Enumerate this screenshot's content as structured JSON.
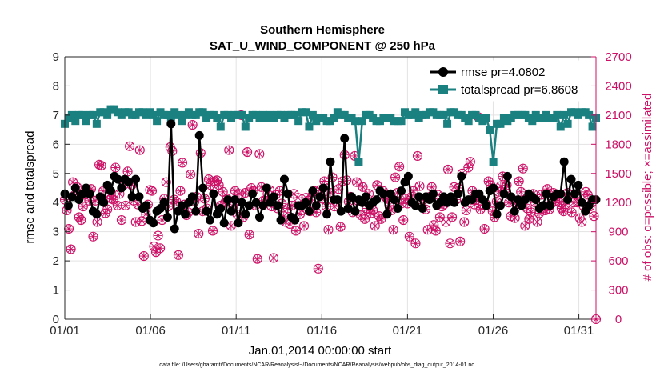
{
  "colors": {
    "rmse": "#000000",
    "spread": "#1a8080",
    "obs": "#cc1166",
    "grid": "#e3e3e3"
  },
  "chart_data": {
    "type": "line",
    "title": "Southern Hemisphere",
    "subtitle": "SAT_U_WIND_COMPONENT @ 250 hPa",
    "xlabel": "Jan.01,2014 00:00:00 start",
    "ylabel_left": "rmse and totalspread",
    "ylabel_right": "# of obs: o=possible; ×=assimilated",
    "footer": "data file: /Users/gharamti/Documents/NCAR/Reanalysis/~/Documents/NCAR/Reanalysis/webpub/obs_diag_output_2014-01.nc",
    "xlim": [
      1,
      32
    ],
    "ylim_left": [
      0,
      9
    ],
    "ylim_right": [
      0,
      2700
    ],
    "x_ticks": [
      1,
      6,
      11,
      16,
      21,
      26,
      31
    ],
    "x_tick_labels": [
      "01/01",
      "01/06",
      "01/11",
      "01/16",
      "01/21",
      "01/26",
      "01/31"
    ],
    "y_left_ticks": [
      "0",
      "1",
      "2",
      "3",
      "4",
      "5",
      "6",
      "7",
      "8",
      "9"
    ],
    "y_right_ticks": [
      "0",
      "300",
      "600",
      "900",
      "1200",
      "1500",
      "1800",
      "2100",
      "2400",
      "2700"
    ],
    "grid": true,
    "legend_position": "top-right",
    "series": [
      {
        "name": "rmse",
        "label": "rmse pr=4.0802",
        "axis": "left",
        "values": [
          4.3,
          3.9,
          4.2,
          4.5,
          4.1,
          4.3,
          4.5,
          4.3,
          3.7,
          3.6,
          4.2,
          4.0,
          4.6,
          4.4,
          4.9,
          4.8,
          4.5,
          4.8,
          4.7,
          4.2,
          4.8,
          4.2,
          3.8,
          3.9,
          3.4,
          3.3,
          3.7,
          3.8,
          4.0,
          3.5,
          6.7,
          3.1,
          3.7,
          3.9,
          3.6,
          4.0,
          4.2,
          3.7,
          6.3,
          4.5,
          3.7,
          3.4,
          4.3,
          3.6,
          3.8,
          3.3,
          4.1,
          3.7,
          4.1,
          3.3,
          4.0,
          3.6,
          3.9,
          4.3,
          4.0,
          3.5,
          3.9,
          4.5,
          4.0,
          4.2,
          3.9,
          3.4,
          4.8,
          4.3,
          3.5,
          3.4,
          3.9,
          3.9,
          4.0,
          3.7,
          4.4,
          3.9,
          4.2,
          4.5,
          3.6,
          5.4,
          4.1,
          4.1,
          3.7,
          6.2,
          3.8,
          4.2,
          3.7,
          4.1,
          4.0,
          4.2,
          3.9,
          4.0,
          4.1,
          4.4,
          4.3,
          3.6,
          4.3,
          4.1,
          3.8,
          4.4,
          4.7,
          4.9,
          4.0,
          3.9,
          4.2,
          3.8,
          4.2,
          4.1,
          4.3,
          3.9,
          4.0,
          4.2,
          4.0,
          4.2,
          4.0,
          4.3,
          4.9,
          4.0,
          4.1,
          4.1,
          4.3,
          4.3,
          4.1,
          3.9,
          4.4,
          4.5,
          3.6,
          3.9,
          4.3,
          4.9,
          4.2,
          3.7,
          4.1,
          3.9,
          4.1,
          4.3,
          4.2,
          4.1,
          3.8,
          3.9,
          4.3,
          3.9,
          4.2,
          4.3,
          4.3,
          5.4,
          4.1,
          4.8,
          4.3,
          4.6,
          4.0,
          3.7,
          3.9,
          4.1,
          4.1
        ]
      },
      {
        "name": "totalspread",
        "label": "totalspread pr=6.8608",
        "axis": "left",
        "values": [
          6.7,
          6.9,
          7.0,
          6.8,
          7.0,
          7.0,
          6.8,
          7.0,
          7.0,
          6.7,
          7.1,
          7.1,
          7.0,
          7.2,
          7.2,
          7.1,
          7.0,
          7.1,
          7.1,
          7.0,
          7.0,
          7.1,
          7.1,
          7.0,
          7.1,
          7.0,
          6.8,
          7.1,
          7.0,
          7.0,
          6.9,
          7.1,
          7.0,
          6.8,
          7.0,
          7.1,
          7.0,
          7.0,
          7.1,
          7.1,
          6.9,
          7.0,
          7.0,
          6.9,
          6.6,
          7.0,
          7.0,
          6.9,
          7.0,
          7.0,
          7.0,
          6.6,
          6.9,
          7.0,
          7.0,
          6.9,
          7.0,
          6.9,
          7.0,
          6.9,
          7.0,
          7.0,
          6.9,
          7.0,
          7.0,
          7.0,
          6.8,
          7.1,
          7.1,
          6.6,
          7.0,
          6.8,
          6.9,
          6.9,
          6.8,
          6.8,
          6.9,
          7.1,
          7.0,
          7.0,
          6.9,
          6.9,
          6.8,
          5.4,
          6.8,
          7.0,
          7.0,
          6.9,
          6.8,
          6.8,
          6.9,
          6.9,
          6.9,
          6.8,
          6.8,
          6.8,
          7.1,
          7.0,
          7.0,
          7.1,
          6.9,
          7.0,
          7.0,
          7.1,
          7.1,
          7.0,
          7.0,
          7.0,
          6.7,
          7.1,
          7.1,
          7.0,
          7.0,
          6.9,
          6.8,
          7.0,
          7.0,
          6.9,
          6.8,
          6.9,
          6.5,
          5.4,
          6.7,
          6.7,
          6.9,
          6.8,
          6.9,
          7.0,
          7.0,
          7.0,
          7.0,
          6.9,
          6.8,
          7.0,
          6.9,
          6.9,
          7.0,
          6.9,
          6.9,
          7.0,
          6.6,
          7.0,
          6.7,
          7.1,
          7.1,
          7.0,
          7.1,
          7.1,
          7.0,
          6.6,
          6.9
        ]
      },
      {
        "name": "obs_possible",
        "label": "o=possible",
        "axis": "right",
        "values": [
          1230,
          1120,
          930,
          720,
          1410,
          1280,
          1360,
          1050,
          1020,
          1160,
          1280,
          1320,
          1220,
          1340,
          850,
          1220,
          1000,
          1590,
          1580,
          1320,
          1090,
          1130,
          1290,
          1240,
          1230,
          1560,
          1170,
          1290,
          1020,
          1380,
          1170,
          1520,
          1780,
          1380,
          1220,
          1000,
          1180,
          1740,
          1010,
          650,
          1080,
          1180,
          1330,
          1320,
          750,
          690,
          860,
          730,
          1020,
          1240,
          1410,
          1160,
          1770,
          1730,
          1230,
          1210,
          660,
          1320,
          1610,
          1180,
          1070,
          1100,
          1490,
          2000,
          1210,
          1260,
          880,
          1710,
          1110,
          1240,
          1140,
          1440,
          1380,
          910,
          1420,
          1430,
          1380,
          1170,
          1310,
          1200,
          1240,
          1740,
          960,
          1160,
          1320,
          1080,
          1290,
          2100,
          1050,
          1300,
          1720,
          870,
          1350,
          1320,
          1170,
          620,
          1700,
          1360,
          1220,
          1220,
          1290,
          1330,
          1160,
          630,
          1280,
          1140,
          1320,
          1190,
          1060,
          1000,
          1140,
          980,
          1170,
          1290,
          910,
          1250,
          1080,
          1120,
          960,
          1250,
          1220,
          1110,
          1270,
          1320,
          1100,
          520,
          1330,
          1240,
          1420,
          1160,
          920,
          1300,
          1460,
          1160,
          1210,
          1340,
          950,
          1420,
          1690,
          1430,
          1210,
          1260,
          1100,
          1680,
          1410,
          1210,
          1070,
          1360,
          1030,
          1140,
          1290,
          1090,
          1120,
          960,
          1380,
          1060,
          1030,
          1320,
          1260,
          1240,
          1170,
          1120,
          920,
          1460,
          1300,
          1570,
          1190,
          1020,
          1240,
          1190,
          850,
          1260,
          1320,
          780,
          1680,
          1370,
          1190,
          1230,
          1130,
          920,
          1260,
          1360,
          970,
          910,
          1280,
          1050,
          1160,
          1180,
          1000,
          1540,
          780,
          1050,
          1360,
          1230,
          1350,
          800,
          1500,
          1000,
          1120,
          1560,
          1620,
          1320,
          1180,
          1230,
          2080,
          1130,
          1180,
          930,
          1180,
          1420,
          1380,
          1110,
          1050,
          1210,
          1310,
          1370,
          1470,
          1330,
          1380,
          1200,
          1060,
          1230,
          1040,
          1160,
          1420,
          1310,
          1550,
          960,
          1140,
          1030,
          1100,
          1290,
          1200,
          1000,
          1090,
          1280,
          1140,
          1120,
          1340,
          1130,
          1190,
          1300,
          1220,
          1240,
          1200,
          1140,
          1110,
          1180,
          1300,
          1280,
          1100,
          1200,
          1280,
          1200,
          1040,
          1000,
          1160,
          1310,
          1280,
          1160,
          1200,
          1060,
          0
        ]
      }
    ]
  }
}
